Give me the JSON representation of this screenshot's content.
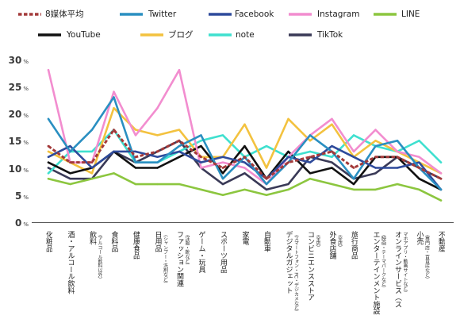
{
  "chart_data": {
    "type": "line",
    "categories": [
      {
        "label": "化粧品"
      },
      {
        "label": "酒・アルコール飲料"
      },
      {
        "label": "飲料",
        "sub": "（アルコール飲料以外）"
      },
      {
        "label": "食料品"
      },
      {
        "label": "健康食品"
      },
      {
        "label": "日用品",
        "sub": "（シャンプー・洗剤など）"
      },
      {
        "label": "ファッション関連",
        "sub": "（洋服・靴など）"
      },
      {
        "label": "ゲーム・玩具"
      },
      {
        "label": "スポーツ用品"
      },
      {
        "label": "家電"
      },
      {
        "label": "自動車"
      },
      {
        "label": "デジタルガジェット",
        "sub": "（スマートフォン・PC・デジカメなど）"
      },
      {
        "label": "コンビニエンスストア",
        "sub": "（全店）"
      },
      {
        "label": "外食店舗",
        "sub": "（全店）"
      },
      {
        "label": "旅行商品"
      },
      {
        "label": "エンターテインメント施設",
        "sub": "（映画・テーマパークなど）"
      },
      {
        "label": "オンラインサービス（ス",
        "sub": "マホアプリ・動画サイトなど）"
      },
      {
        "label": "小売",
        "sub": "（専門店・百貨店など）"
      },
      {
        "label": "不動産"
      }
    ],
    "series": [
      {
        "name": "8媒体平均",
        "color": "#a33a3a",
        "style": "dashed",
        "values": [
          14,
          11,
          11,
          17,
          12,
          13,
          15,
          12,
          10,
          12,
          8,
          11,
          12,
          13,
          10,
          12,
          12,
          10,
          8
        ]
      },
      {
        "name": "Twitter",
        "color": "#2a8fc1",
        "values": [
          19,
          13,
          17,
          23,
          11,
          11,
          14,
          16,
          8,
          12,
          7,
          11,
          16,
          13,
          8,
          14,
          15,
          10,
          6
        ]
      },
      {
        "name": "Facebook",
        "color": "#2e4a9b",
        "values": [
          12,
          14,
          10,
          13,
          13,
          12,
          13,
          11,
          12,
          11,
          8,
          12,
          11,
          14,
          12,
          10,
          10,
          11,
          6
        ]
      },
      {
        "name": "Instagram",
        "color": "#f28dcf",
        "values": [
          28,
          11,
          11,
          24,
          16,
          21,
          28,
          10,
          11,
          10,
          7,
          12,
          16,
          19,
          13,
          17,
          13,
          12,
          9
        ]
      },
      {
        "name": "LINE",
        "color": "#8cc63f",
        "values": [
          8,
          7,
          8,
          9,
          7,
          7,
          7,
          6,
          5,
          6,
          5,
          6,
          8,
          7,
          6,
          6,
          7,
          6,
          4
        ]
      },
      {
        "name": "YouTube",
        "color": "#111111",
        "values": [
          11,
          9,
          10,
          13,
          10,
          10,
          12,
          14,
          9,
          14,
          8,
          13,
          9,
          10,
          7,
          12,
          12,
          8,
          6
        ]
      },
      {
        "name": "ブログ",
        "color": "#f3c23f",
        "values": [
          13,
          11,
          9,
          21,
          17,
          16,
          17,
          12,
          12,
          18,
          10,
          19,
          15,
          18,
          12,
          15,
          13,
          11,
          9
        ]
      },
      {
        "name": "note",
        "color": "#3fe0cf",
        "values": [
          9,
          13,
          13,
          17,
          11,
          11,
          13,
          15,
          16,
          12,
          14,
          12,
          13,
          12,
          16,
          14,
          13,
          15,
          11
        ]
      },
      {
        "name": "TikTok",
        "color": "#3a3a57",
        "values": [
          10,
          8,
          8,
          13,
          11,
          13,
          15,
          10,
          7,
          9,
          6,
          7,
          12,
          11,
          8,
          9,
          12,
          10,
          8
        ]
      }
    ],
    "ylim": [
      0,
      30
    ],
    "yticks": [
      30,
      25,
      20,
      15,
      10,
      5,
      0
    ],
    "y_unit": "%",
    "grid": false,
    "legend": "top"
  }
}
